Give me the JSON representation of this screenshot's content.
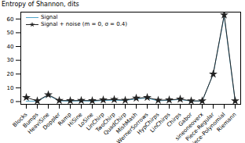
{
  "chart_data": {
    "type": "line",
    "title": "Entropy of Shannon, dits",
    "categories": [
      "Blocks",
      "Bumps",
      "HeaviSine",
      "Doppler",
      "Ramp",
      "HiSine",
      "LoSine",
      "LinChirp",
      "TwoChirp",
      "QuadChirp",
      "MishMash",
      "WernerSorrows",
      "HypChirps",
      "LinChirps",
      "Chirps",
      "Gabor",
      "sineoneoverx",
      "Piece-Regular",
      "Piece-Polynomial",
      "Riemann"
    ],
    "series": [
      {
        "name": "Signal",
        "color": "#4fa3c7",
        "marker": "none",
        "line_style": "solid",
        "values": [
          0.3,
          0.3,
          4.5,
          0.5,
          0.3,
          0.5,
          0.3,
          0.8,
          1,
          0.8,
          2,
          2.5,
          0.5,
          1,
          1.5,
          0.3,
          0.3,
          20,
          62,
          0
        ]
      },
      {
        "name": "Signal + noise (m = 0, σ = 0.4)",
        "color": "#222222",
        "marker": "star",
        "line_style": "solid",
        "values": [
          3,
          0.5,
          5,
          0.8,
          0.7,
          0.8,
          0.7,
          1.2,
          1.5,
          1,
          2.5,
          3,
          1,
          1.2,
          1.8,
          0.5,
          0.5,
          20,
          63,
          0.5
        ]
      }
    ],
    "ylim": [
      -2,
      65
    ],
    "yticks": [
      0,
      10,
      20,
      30,
      40,
      50,
      60
    ],
    "legend": "upper left"
  }
}
